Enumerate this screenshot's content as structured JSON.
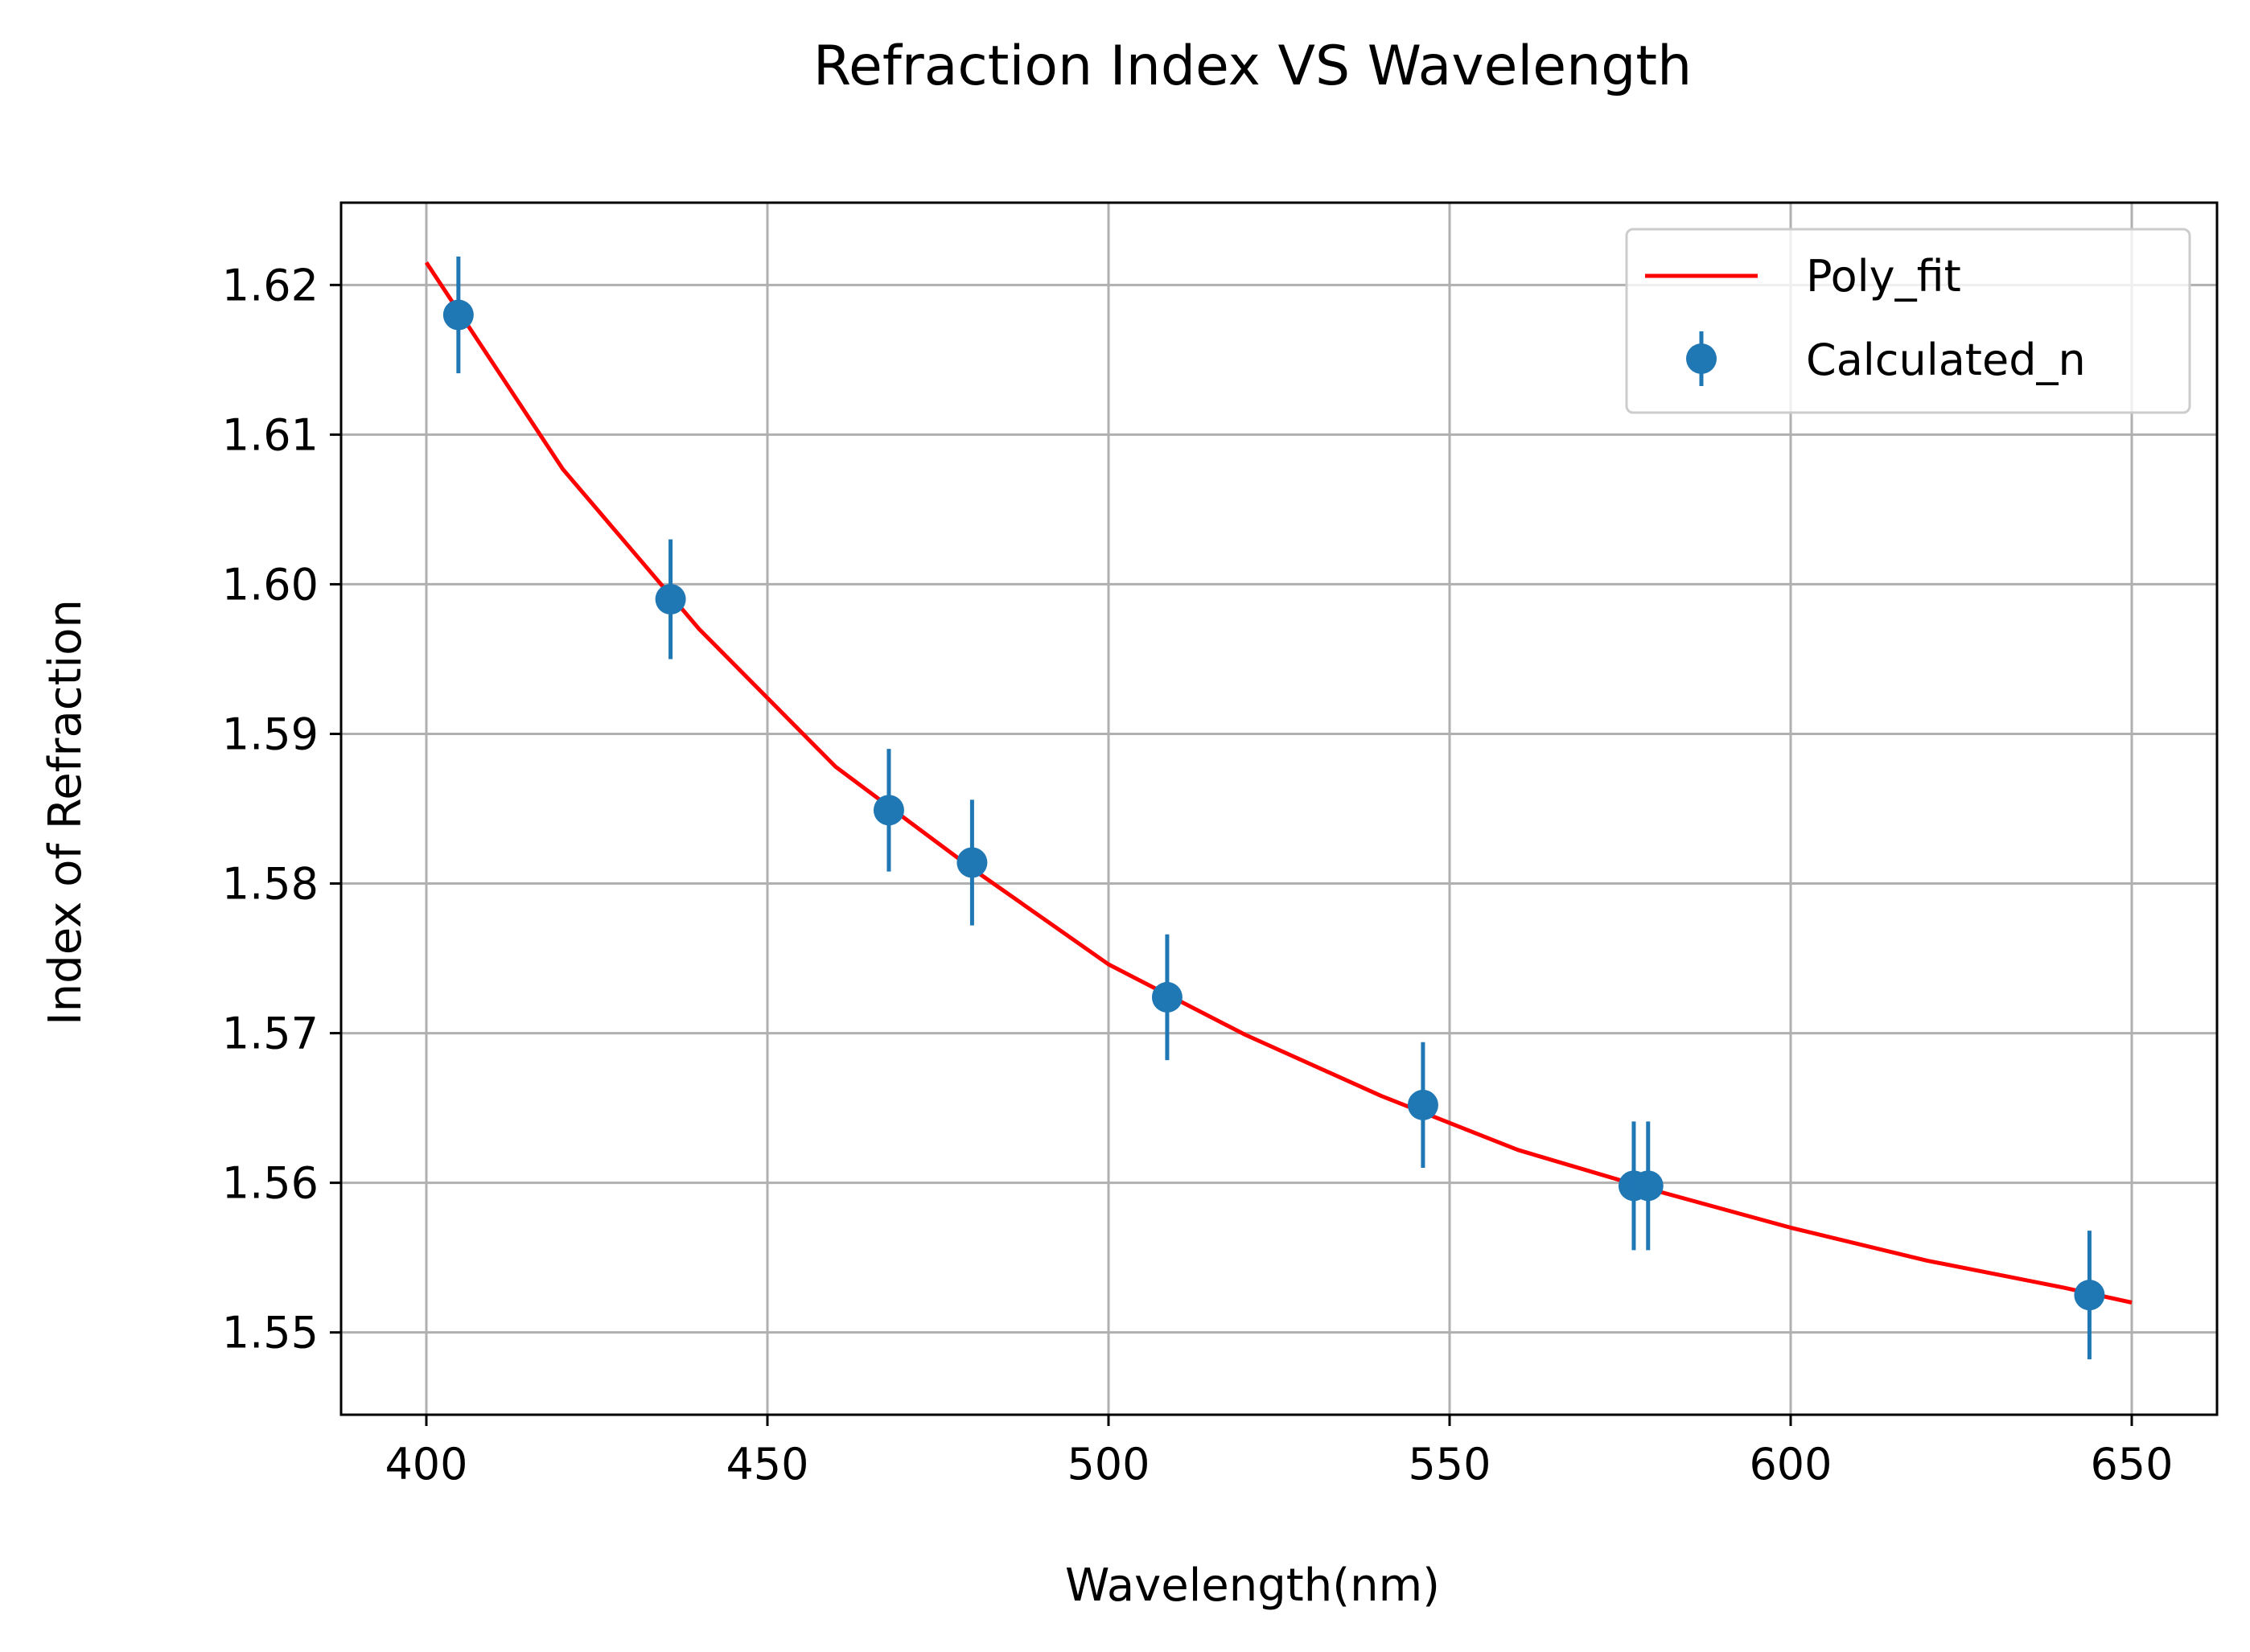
{
  "chart_data": {
    "type": "scatter",
    "title": "Refraction Index VS Wavelength",
    "xlabel": "Wavelength(nm)",
    "ylabel": "Index of Refraction",
    "xlim": [
      387.5,
      662.5
    ],
    "ylim": [
      1.5445,
      1.6255
    ],
    "xticks": [
      400,
      450,
      500,
      550,
      600,
      650
    ],
    "xtick_labels": [
      "400",
      "450",
      "500",
      "550",
      "600",
      "650"
    ],
    "yticks": [
      1.55,
      1.56,
      1.57,
      1.58,
      1.59,
      1.6,
      1.61,
      1.62
    ],
    "ytick_labels": [
      "1.55",
      "1.56",
      "1.57",
      "1.58",
      "1.59",
      "1.60",
      "1.61",
      "1.62"
    ],
    "grid": true,
    "legend_position": "top-right",
    "series": [
      {
        "name": "Poly_fit",
        "kind": "line",
        "color": "#ff0000",
        "x": [
          400,
          420,
          440,
          460,
          480,
          500,
          520,
          540,
          560,
          580,
          600,
          620,
          640,
          650
        ],
        "y": [
          1.6215,
          1.6077,
          1.597,
          1.5878,
          1.581,
          1.5746,
          1.5699,
          1.5658,
          1.5622,
          1.5595,
          1.557,
          1.5548,
          1.553,
          1.552
        ]
      },
      {
        "name": "Calculated_n",
        "kind": "errorbar",
        "color": "#1f77b4",
        "x": [
          404.7,
          435.8,
          467.8,
          480.0,
          508.6,
          546.1,
          577.0,
          579.1,
          643.8
        ],
        "y": [
          1.618,
          1.599,
          1.5849,
          1.5814,
          1.5724,
          1.5652,
          1.5598,
          1.5598,
          1.5525
        ],
        "yerr": [
          0.0039,
          0.004,
          0.0041,
          0.0042,
          0.0042,
          0.0042,
          0.0043,
          0.0043,
          0.0043
        ]
      }
    ]
  }
}
